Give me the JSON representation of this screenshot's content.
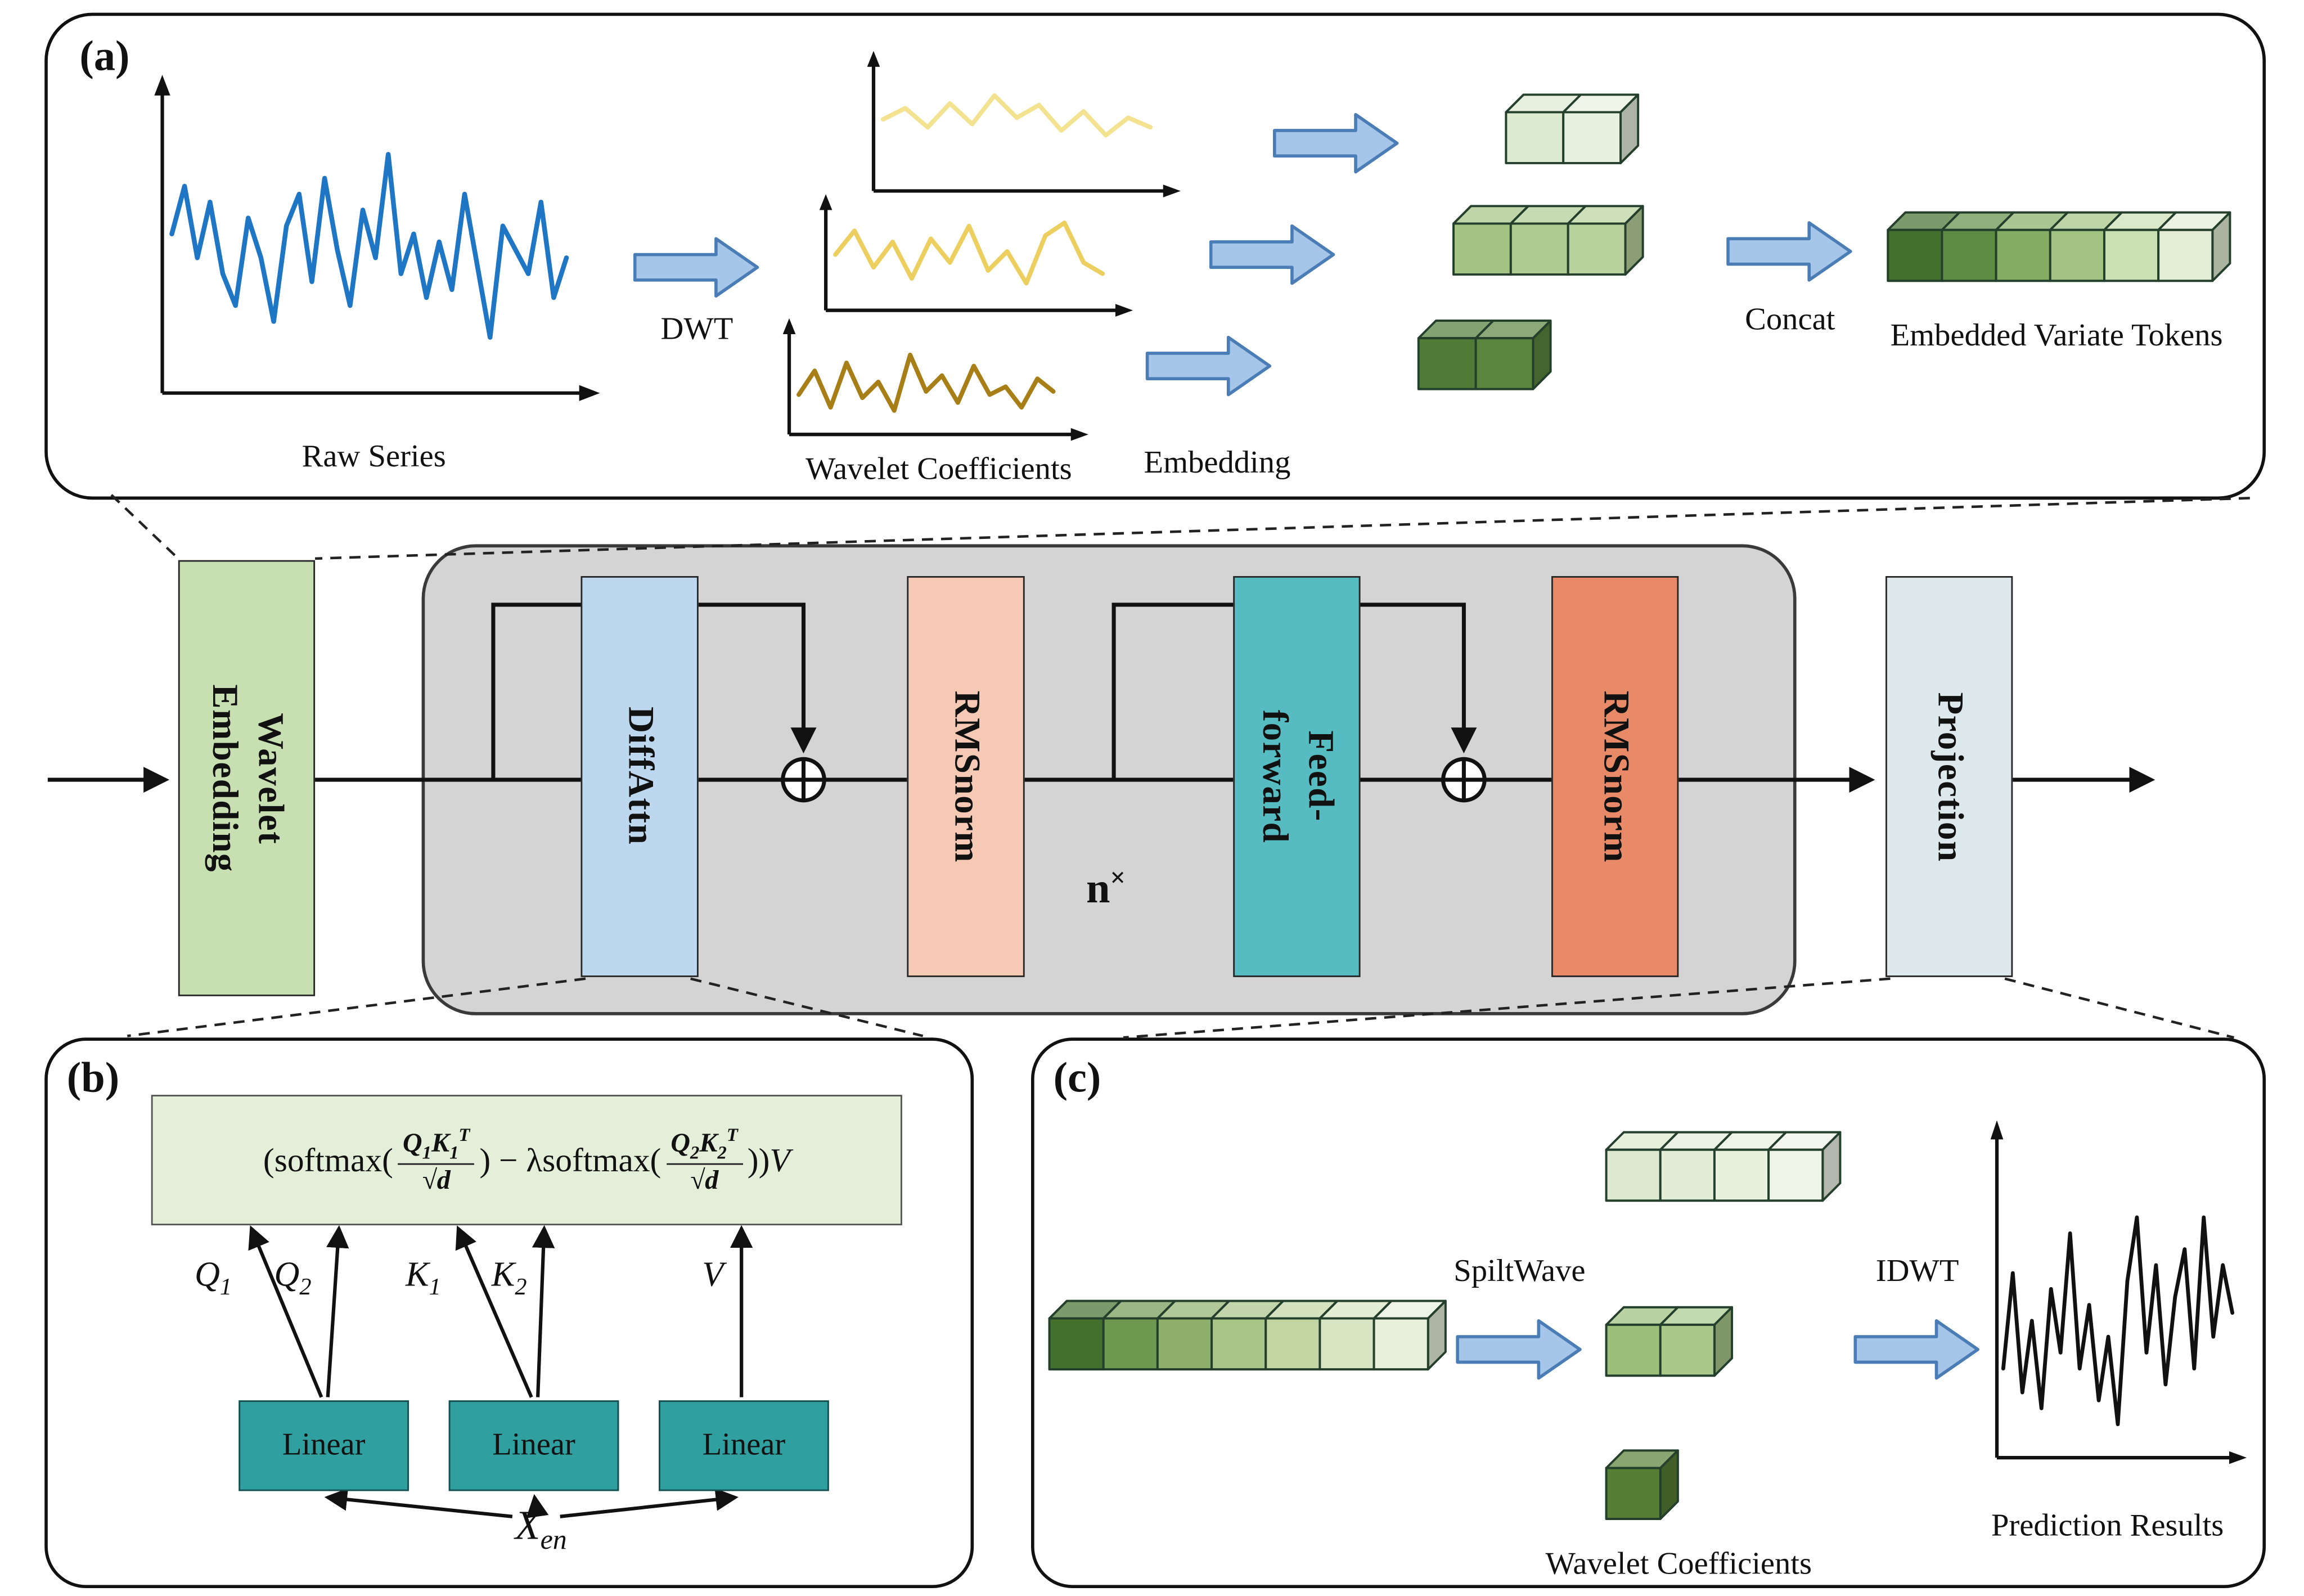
{
  "colors": {
    "arrow_fill": "#a5c6e9",
    "arrow_stroke": "#4a7db6",
    "raw_line": "#1f76c5",
    "wav1_line": "#f3e290",
    "wav2_line": "#eccf5e",
    "wav3_line": "#a87f16",
    "pred_line": "#111111",
    "we_box": "#c8dfb2",
    "diffattn_box": "#bdd7ee",
    "rmsnorm1_box": "#f5c9b4",
    "ff_box": "#57bcc1",
    "rmsnorm2_box": "#e88a67",
    "projection_box": "#dde8ec",
    "block_bg": "#d4d4d4",
    "formula_bg": "#e4efd9",
    "linear_box": "#2f9f9f"
  },
  "panel_a": {
    "label": "(a)",
    "raw_series_caption": "Raw Series",
    "dwt_label": "DWT",
    "wavelet_caption": "Wavelet Coefficients",
    "embedding_label": "Embedding",
    "concat_label": "Concat",
    "tokens_caption": "Embedded Variate Tokens"
  },
  "pipeline": {
    "wavelet_l1": "Wavelet",
    "wavelet_l2": "Embedding",
    "diffattn": "DiffAttn",
    "rmsnorm1": "RMSnorm",
    "repeat_base": "n",
    "repeat_sup": "×",
    "ff_l1": "Feed-",
    "ff_l2": "forward",
    "rmsnorm2": "RMSnorm",
    "projection": "Projection"
  },
  "panel_b": {
    "label": "(b)",
    "f_open": "(softmax(",
    "f_q": "Q",
    "f_k": "K",
    "f_sub1": "1",
    "f_sub2": "2",
    "f_supT": "T",
    "f_den": "√d",
    "f_mid": ") − λsoftmax(",
    "f_close": "))",
    "f_v": "V",
    "q_label": "Q",
    "k_label": "K",
    "v_label": "V",
    "sub1": "1",
    "sub2": "2",
    "linear": "Linear",
    "x_base": "X",
    "x_sub": "en"
  },
  "panel_c": {
    "label": "(c)",
    "spiltwave_label": "SpiltWave",
    "idwt_label": "IDWT",
    "wavelet_caption": "Wavelet Coefficients",
    "prediction_caption": "Prediction Results"
  },
  "cubes": {
    "a_high": [
      "#dcead0",
      "#e7f0de"
    ],
    "a_mid": [
      "#a3c383",
      "#aecb90",
      "#b9d29d"
    ],
    "a_low": [
      "#4f7b37",
      "#5a8640"
    ],
    "a_concat": [
      "#44702e",
      "#5f8c44",
      "#85ad63",
      "#a3c383",
      "#cadfb2",
      "#e4eed7"
    ],
    "c_input": [
      "#44702e",
      "#6f9851",
      "#8fb06c",
      "#a9c487",
      "#c2d6a4",
      "#d7e5c2",
      "#e8f0db"
    ],
    "c_high": [
      "#dce9cf",
      "#e2edd8",
      "#e8f0de",
      "#eef4e6"
    ],
    "c_mid": [
      "#9cbe7b",
      "#a9c98b"
    ],
    "c_low": [
      "#567f35"
    ]
  }
}
